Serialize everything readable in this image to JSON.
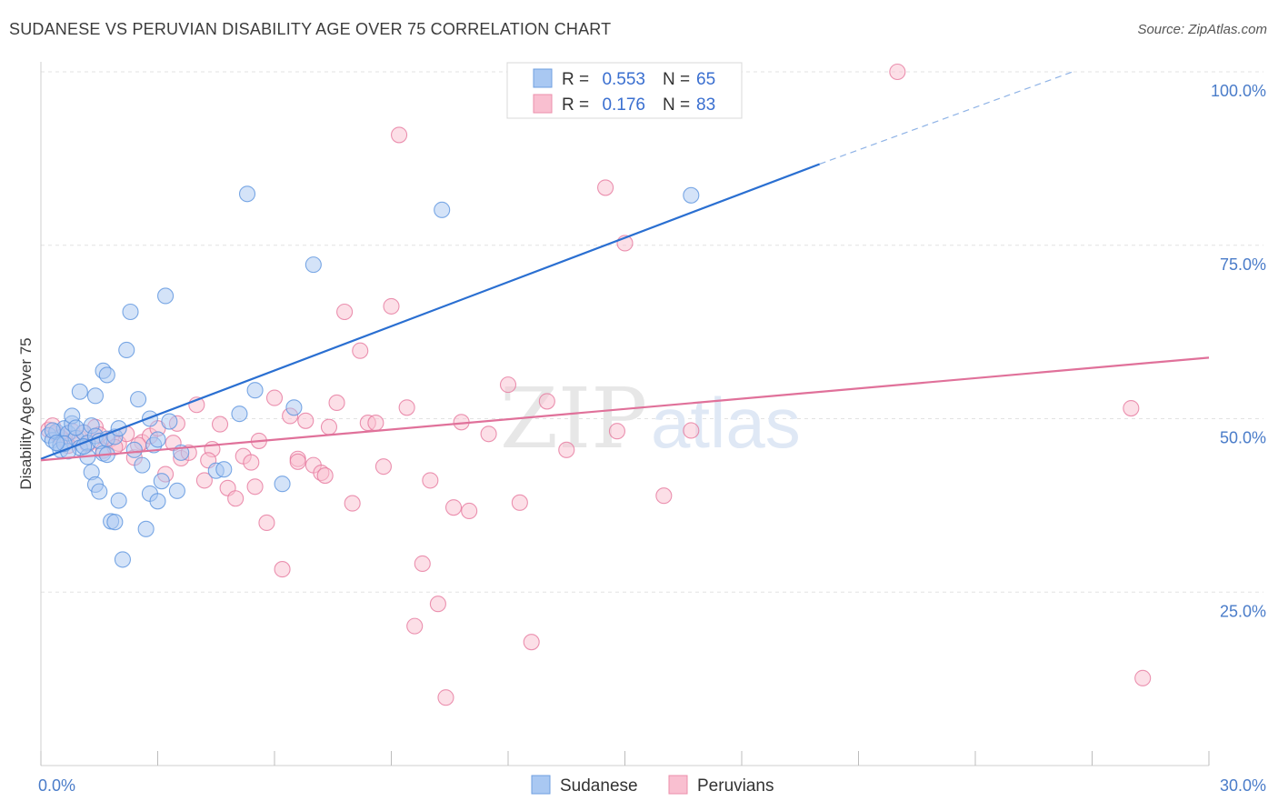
{
  "header": {
    "title": "SUDANESE VS PERUVIAN DISABILITY AGE OVER 75 CORRELATION CHART",
    "source": "Source: ZipAtlas.com"
  },
  "legend": {
    "r_label": "R =",
    "n_label": "N =",
    "rows": [
      {
        "r": "0.553",
        "n": "65",
        "fill": "#a9c8f2",
        "stroke": "#6f9fe0"
      },
      {
        "r": "0.176",
        "n": "83",
        "fill": "#f9bfd0",
        "stroke": "#ec8fab"
      }
    ]
  },
  "watermark": {
    "zip": "ZIP",
    "atlas": "atlas"
  },
  "chart_data": {
    "type": "scatter",
    "title": "SUDANESE VS PERUVIAN DISABILITY AGE OVER 75 CORRELATION CHART",
    "xlabel": "",
    "ylabel": "Disability Age Over 75",
    "xlim": [
      0,
      30
    ],
    "ylim": [
      0,
      100
    ],
    "x_tick_labels": [
      "0.0%",
      "30.0%"
    ],
    "y_tick_labels": [
      "25.0%",
      "50.0%",
      "75.0%",
      "100.0%"
    ],
    "y_ticks": [
      25,
      50,
      75,
      100
    ],
    "grid": true,
    "legend_position": "top-center",
    "series": [
      {
        "name": "Sudanese",
        "color": "#5b93df",
        "fill": "#a9c8f2",
        "trend": {
          "x": [
            0,
            20
          ],
          "y": [
            44.2,
            86.7
          ],
          "dashed_to": [
            26.5,
            100
          ]
        },
        "points": [
          [
            0.2,
            47.6
          ],
          [
            0.3,
            46.9
          ],
          [
            0.4,
            48.1
          ],
          [
            0.5,
            46.2
          ],
          [
            0.6,
            48.6
          ],
          [
            0.7,
            47.9
          ],
          [
            0.8,
            49.3
          ],
          [
            0.9,
            47.2
          ],
          [
            1.0,
            45.8
          ],
          [
            1.1,
            48.0
          ],
          [
            1.2,
            46.5
          ],
          [
            1.3,
            49.0
          ],
          [
            1.4,
            47.5
          ],
          [
            1.5,
            46.8
          ],
          [
            1.6,
            45.0
          ],
          [
            1.7,
            47.1
          ],
          [
            0.5,
            45.5
          ],
          [
            0.7,
            45.3
          ],
          [
            0.8,
            50.4
          ],
          [
            1.0,
            53.9
          ],
          [
            1.2,
            44.5
          ],
          [
            1.3,
            42.3
          ],
          [
            1.4,
            40.5
          ],
          [
            1.5,
            39.5
          ],
          [
            1.6,
            56.9
          ],
          [
            1.7,
            56.3
          ],
          [
            1.8,
            35.2
          ],
          [
            1.9,
            35.1
          ],
          [
            2.0,
            38.2
          ],
          [
            2.1,
            29.7
          ],
          [
            2.2,
            59.9
          ],
          [
            2.3,
            65.4
          ],
          [
            2.4,
            45.5
          ],
          [
            2.5,
            52.8
          ],
          [
            2.6,
            43.3
          ],
          [
            2.7,
            34.1
          ],
          [
            2.8,
            39.2
          ],
          [
            2.9,
            46.2
          ],
          [
            3.0,
            38.1
          ],
          [
            3.1,
            41.0
          ],
          [
            3.2,
            67.7
          ],
          [
            3.3,
            49.6
          ],
          [
            3.5,
            39.6
          ],
          [
            3.6,
            45.1
          ],
          [
            4.5,
            42.5
          ],
          [
            4.7,
            42.7
          ],
          [
            5.1,
            50.7
          ],
          [
            5.3,
            82.4
          ],
          [
            5.5,
            54.1
          ],
          [
            6.2,
            40.6
          ],
          [
            6.5,
            51.6
          ],
          [
            7.0,
            72.2
          ],
          [
            10.3,
            80.1
          ],
          [
            16.7,
            82.2
          ],
          [
            0.3,
            48.3
          ],
          [
            0.6,
            46.4
          ],
          [
            0.9,
            48.7
          ],
          [
            1.1,
            46.0
          ],
          [
            1.9,
            47.4
          ],
          [
            2.0,
            48.6
          ],
          [
            1.4,
            53.3
          ],
          [
            3.0,
            47.0
          ],
          [
            0.4,
            46.5
          ],
          [
            1.7,
            44.8
          ],
          [
            2.8,
            50.0
          ]
        ]
      },
      {
        "name": "Peruvians",
        "color": "#e6789d",
        "fill": "#f9bfd0",
        "trend": {
          "x": [
            0,
            30
          ],
          "y": [
            44.0,
            58.8
          ]
        },
        "points": [
          [
            0.2,
            48.4
          ],
          [
            0.4,
            47.8
          ],
          [
            0.6,
            46.9
          ],
          [
            0.8,
            48.2
          ],
          [
            1.0,
            47.2
          ],
          [
            1.2,
            46.3
          ],
          [
            1.4,
            48.8
          ],
          [
            1.6,
            45.4
          ],
          [
            1.8,
            47.1
          ],
          [
            2.0,
            46.4
          ],
          [
            2.2,
            47.8
          ],
          [
            2.4,
            44.4
          ],
          [
            2.6,
            46.6
          ],
          [
            2.8,
            47.5
          ],
          [
            3.0,
            48.6
          ],
          [
            3.2,
            42.0
          ],
          [
            3.4,
            46.5
          ],
          [
            3.6,
            44.3
          ],
          [
            3.8,
            45.1
          ],
          [
            4.0,
            52.0
          ],
          [
            4.2,
            41.1
          ],
          [
            4.4,
            45.6
          ],
          [
            4.6,
            49.2
          ],
          [
            4.8,
            40.0
          ],
          [
            5.0,
            38.5
          ],
          [
            5.2,
            44.6
          ],
          [
            5.4,
            43.7
          ],
          [
            5.6,
            46.8
          ],
          [
            5.8,
            35.0
          ],
          [
            6.0,
            53.0
          ],
          [
            6.2,
            28.3
          ],
          [
            6.4,
            50.4
          ],
          [
            6.6,
            44.2
          ],
          [
            6.8,
            49.7
          ],
          [
            7.0,
            43.3
          ],
          [
            7.2,
            42.2
          ],
          [
            7.4,
            48.8
          ],
          [
            7.6,
            52.3
          ],
          [
            7.8,
            65.4
          ],
          [
            8.0,
            37.8
          ],
          [
            8.2,
            59.8
          ],
          [
            8.4,
            49.4
          ],
          [
            8.6,
            49.4
          ],
          [
            8.8,
            43.1
          ],
          [
            9.0,
            66.2
          ],
          [
            9.2,
            90.9
          ],
          [
            9.4,
            51.6
          ],
          [
            9.6,
            20.1
          ],
          [
            9.8,
            29.1
          ],
          [
            10.0,
            41.1
          ],
          [
            10.2,
            23.3
          ],
          [
            10.4,
            9.8
          ],
          [
            10.6,
            37.2
          ],
          [
            10.8,
            49.5
          ],
          [
            11.0,
            36.7
          ],
          [
            11.5,
            47.8
          ],
          [
            12.0,
            54.9
          ],
          [
            12.3,
            37.9
          ],
          [
            12.6,
            17.8
          ],
          [
            13.0,
            52.5
          ],
          [
            13.5,
            45.5
          ],
          [
            14.0,
            100.0
          ],
          [
            14.5,
            83.3
          ],
          [
            14.8,
            48.2
          ],
          [
            15.0,
            75.3
          ],
          [
            16.0,
            38.9
          ],
          [
            16.7,
            48.3
          ],
          [
            17.5,
            100.0
          ],
          [
            22.0,
            100.0
          ],
          [
            28.0,
            51.5
          ],
          [
            28.3,
            12.6
          ],
          [
            0.3,
            49.0
          ],
          [
            0.5,
            47.3
          ],
          [
            0.7,
            46.1
          ],
          [
            1.1,
            48.0
          ],
          [
            1.5,
            47.7
          ],
          [
            1.9,
            45.9
          ],
          [
            2.5,
            46.2
          ],
          [
            3.5,
            49.3
          ],
          [
            4.3,
            44.0
          ],
          [
            5.5,
            40.2
          ],
          [
            6.6,
            43.8
          ],
          [
            7.3,
            41.8
          ]
        ]
      }
    ]
  }
}
